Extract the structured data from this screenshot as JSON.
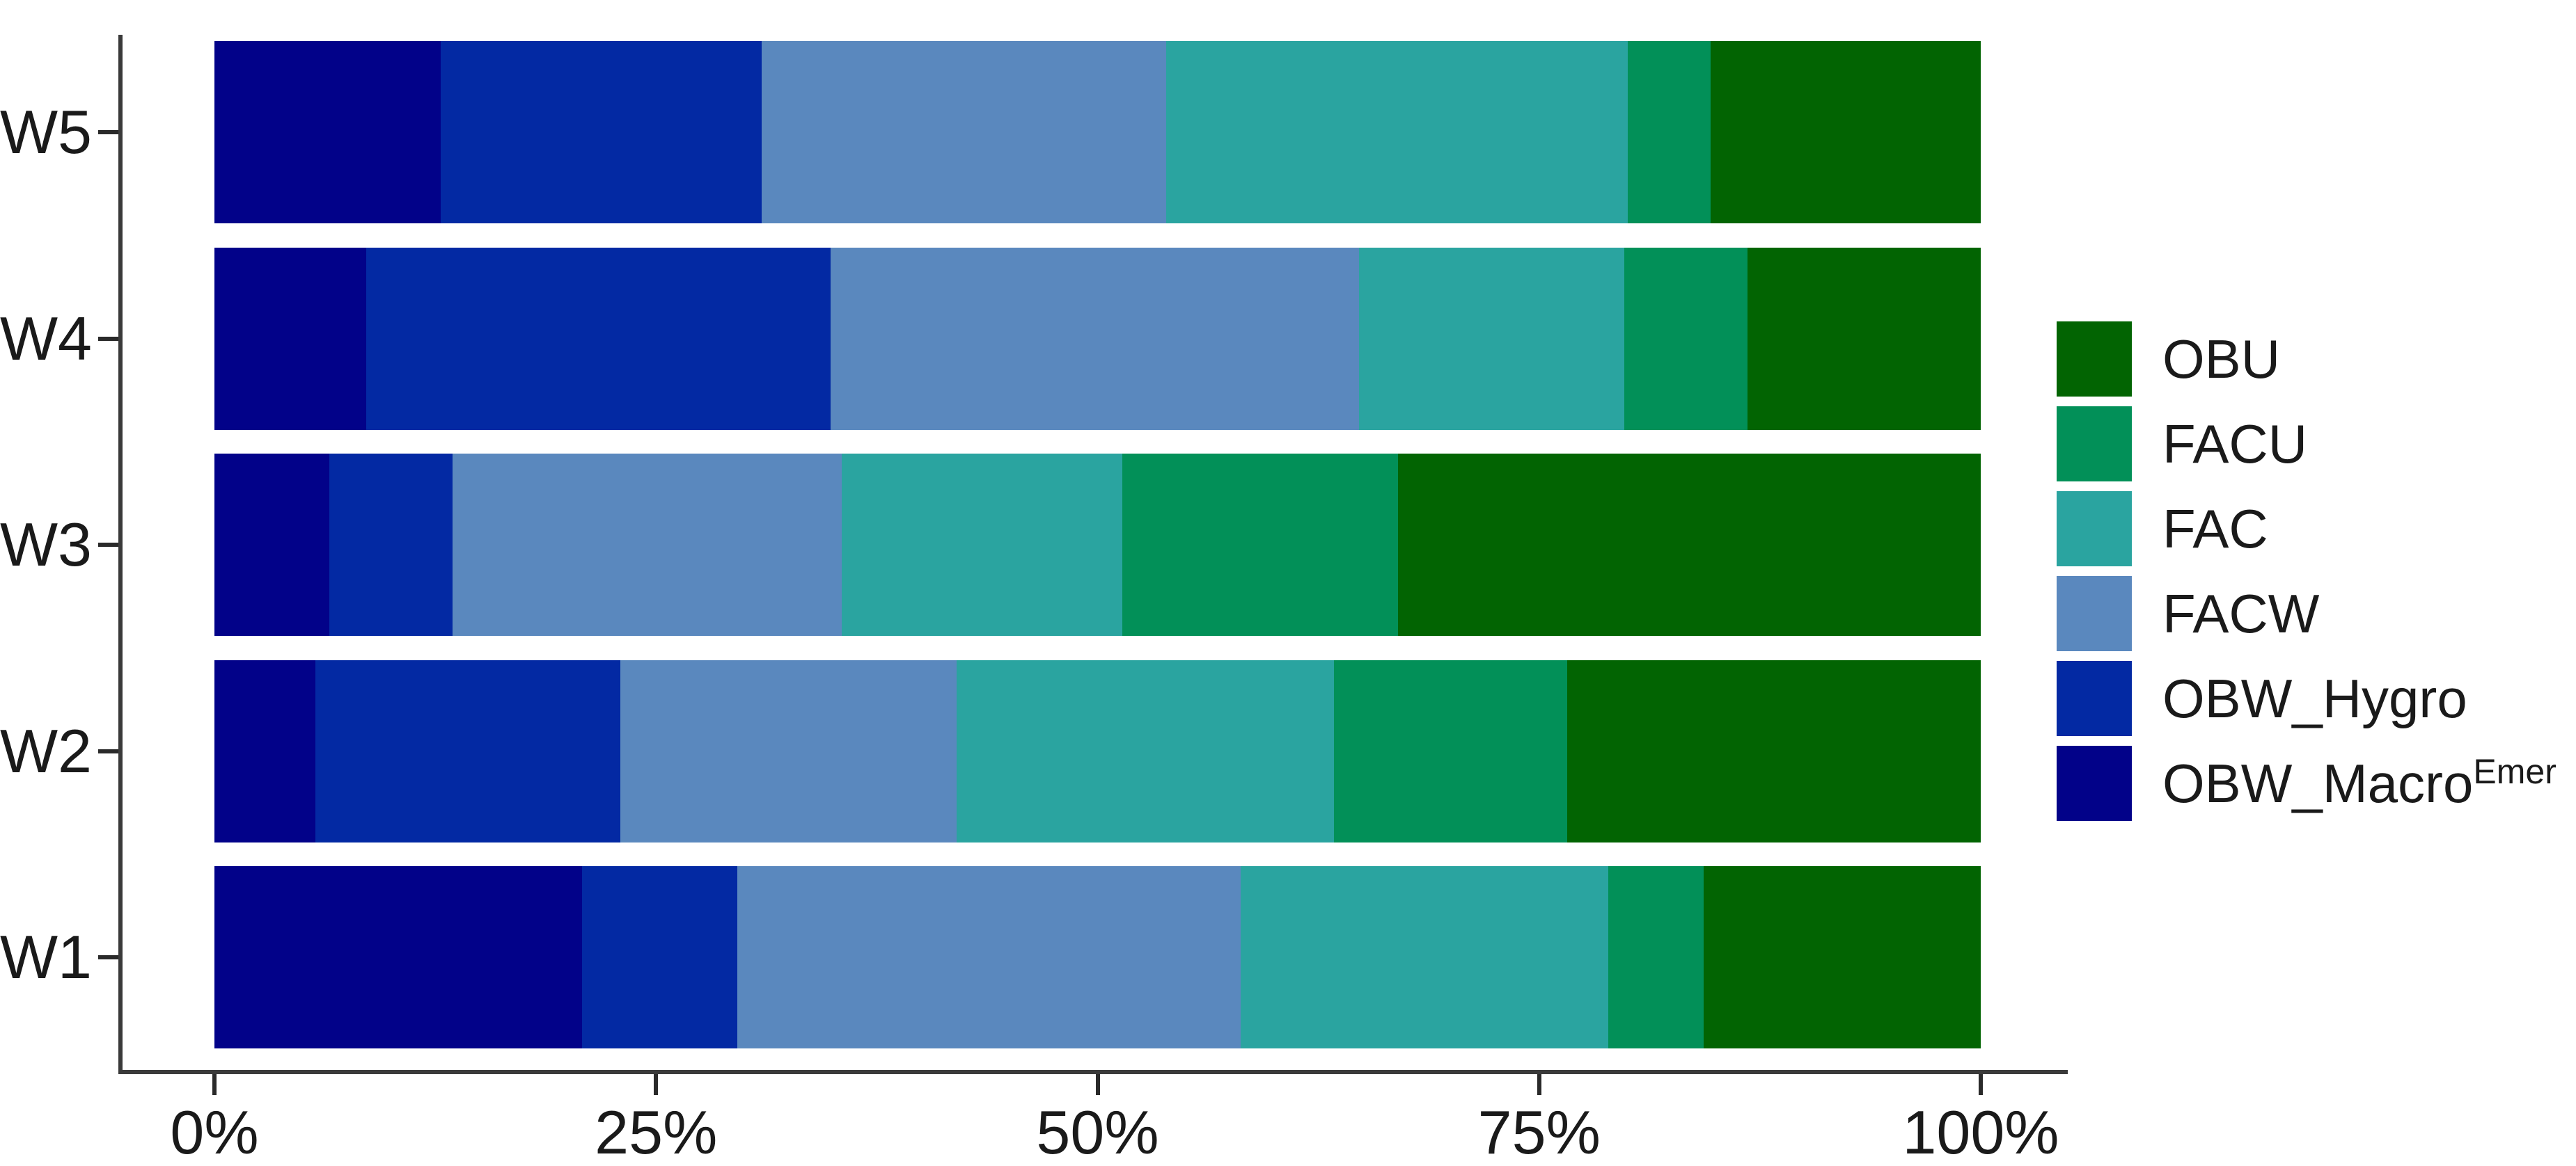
{
  "chart_data": {
    "type": "bar",
    "orientation": "horizontal",
    "stacked": true,
    "unit": "percent",
    "title": "",
    "xlabel": "",
    "ylabel": "",
    "xlim": [
      0,
      100
    ],
    "grid": false,
    "x_ticks": [
      {
        "value": 0,
        "label": "0%"
      },
      {
        "value": 25,
        "label": "25%"
      },
      {
        "value": 50,
        "label": "50%"
      },
      {
        "value": 75,
        "label": "75%"
      },
      {
        "value": 100,
        "label": "100%"
      }
    ],
    "series_order_left_to_right": [
      "OBW_MacroEmer",
      "OBW_Hygro",
      "FACW",
      "FAC",
      "FACU",
      "OBU"
    ],
    "colors": {
      "OBU": "#026402",
      "FACU": "#029058",
      "FAC": "#2AA4A0",
      "FACW": "#5A88BE",
      "OBW_Hygro": "#0329A3",
      "OBW_MacroEmer": "#020289"
    },
    "rows_top_to_bottom": [
      {
        "label": "W5",
        "values": {
          "OBW_MacroEmer": 12.8,
          "OBW_Hygro": 18.2,
          "FACW": 22.9,
          "FAC": 26.1,
          "FACU": 4.7,
          "OBU": 15.3
        }
      },
      {
        "label": "W4",
        "values": {
          "OBW_MacroEmer": 8.6,
          "OBW_Hygro": 26.3,
          "FACW": 29.9,
          "FAC": 15.0,
          "FACU": 7.0,
          "OBU": 13.2
        }
      },
      {
        "label": "W3",
        "values": {
          "OBW_MacroEmer": 6.5,
          "OBW_Hygro": 7.0,
          "FACW": 22.0,
          "FAC": 15.9,
          "FACU": 15.6,
          "OBU": 33.0
        }
      },
      {
        "label": "W2",
        "values": {
          "OBW_MacroEmer": 5.7,
          "OBW_Hygro": 17.3,
          "FACW": 19.0,
          "FAC": 21.4,
          "FACU": 13.2,
          "OBU": 23.4
        }
      },
      {
        "label": "W1",
        "values": {
          "OBW_MacroEmer": 20.8,
          "OBW_Hygro": 8.8,
          "FACW": 28.5,
          "FAC": 20.8,
          "FACU": 5.4,
          "OBU": 15.7
        }
      }
    ],
    "legend": {
      "position": "right",
      "items_top_to_bottom": [
        {
          "label": "OBU",
          "sup": "",
          "key": "OBU"
        },
        {
          "label": "FACU",
          "sup": "",
          "key": "FACU"
        },
        {
          "label": "FAC",
          "sup": "",
          "key": "FAC"
        },
        {
          "label": "FACW",
          "sup": "",
          "key": "FACW"
        },
        {
          "label": "OBW_Hygro",
          "sup": "",
          "key": "OBW_Hygro"
        },
        {
          "label": "OBW_Macro",
          "sup": "Emer",
          "key": "OBW_MacroEmer"
        }
      ]
    }
  }
}
